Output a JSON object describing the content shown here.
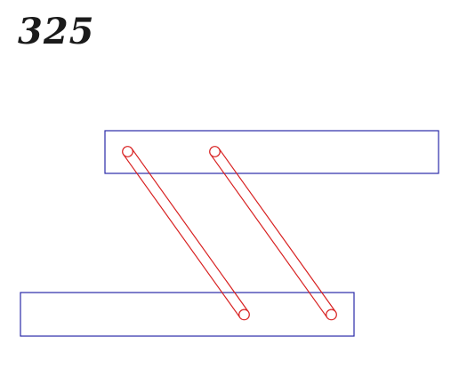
{
  "page": {
    "number": "325"
  },
  "colors": {
    "plate": "#2a2aa8",
    "link": "#d82020",
    "text": "#1a1a1a"
  },
  "figure": {
    "plates": [
      "upper-plate",
      "lower-plate"
    ],
    "links": [
      "link-left",
      "link-right"
    ]
  }
}
